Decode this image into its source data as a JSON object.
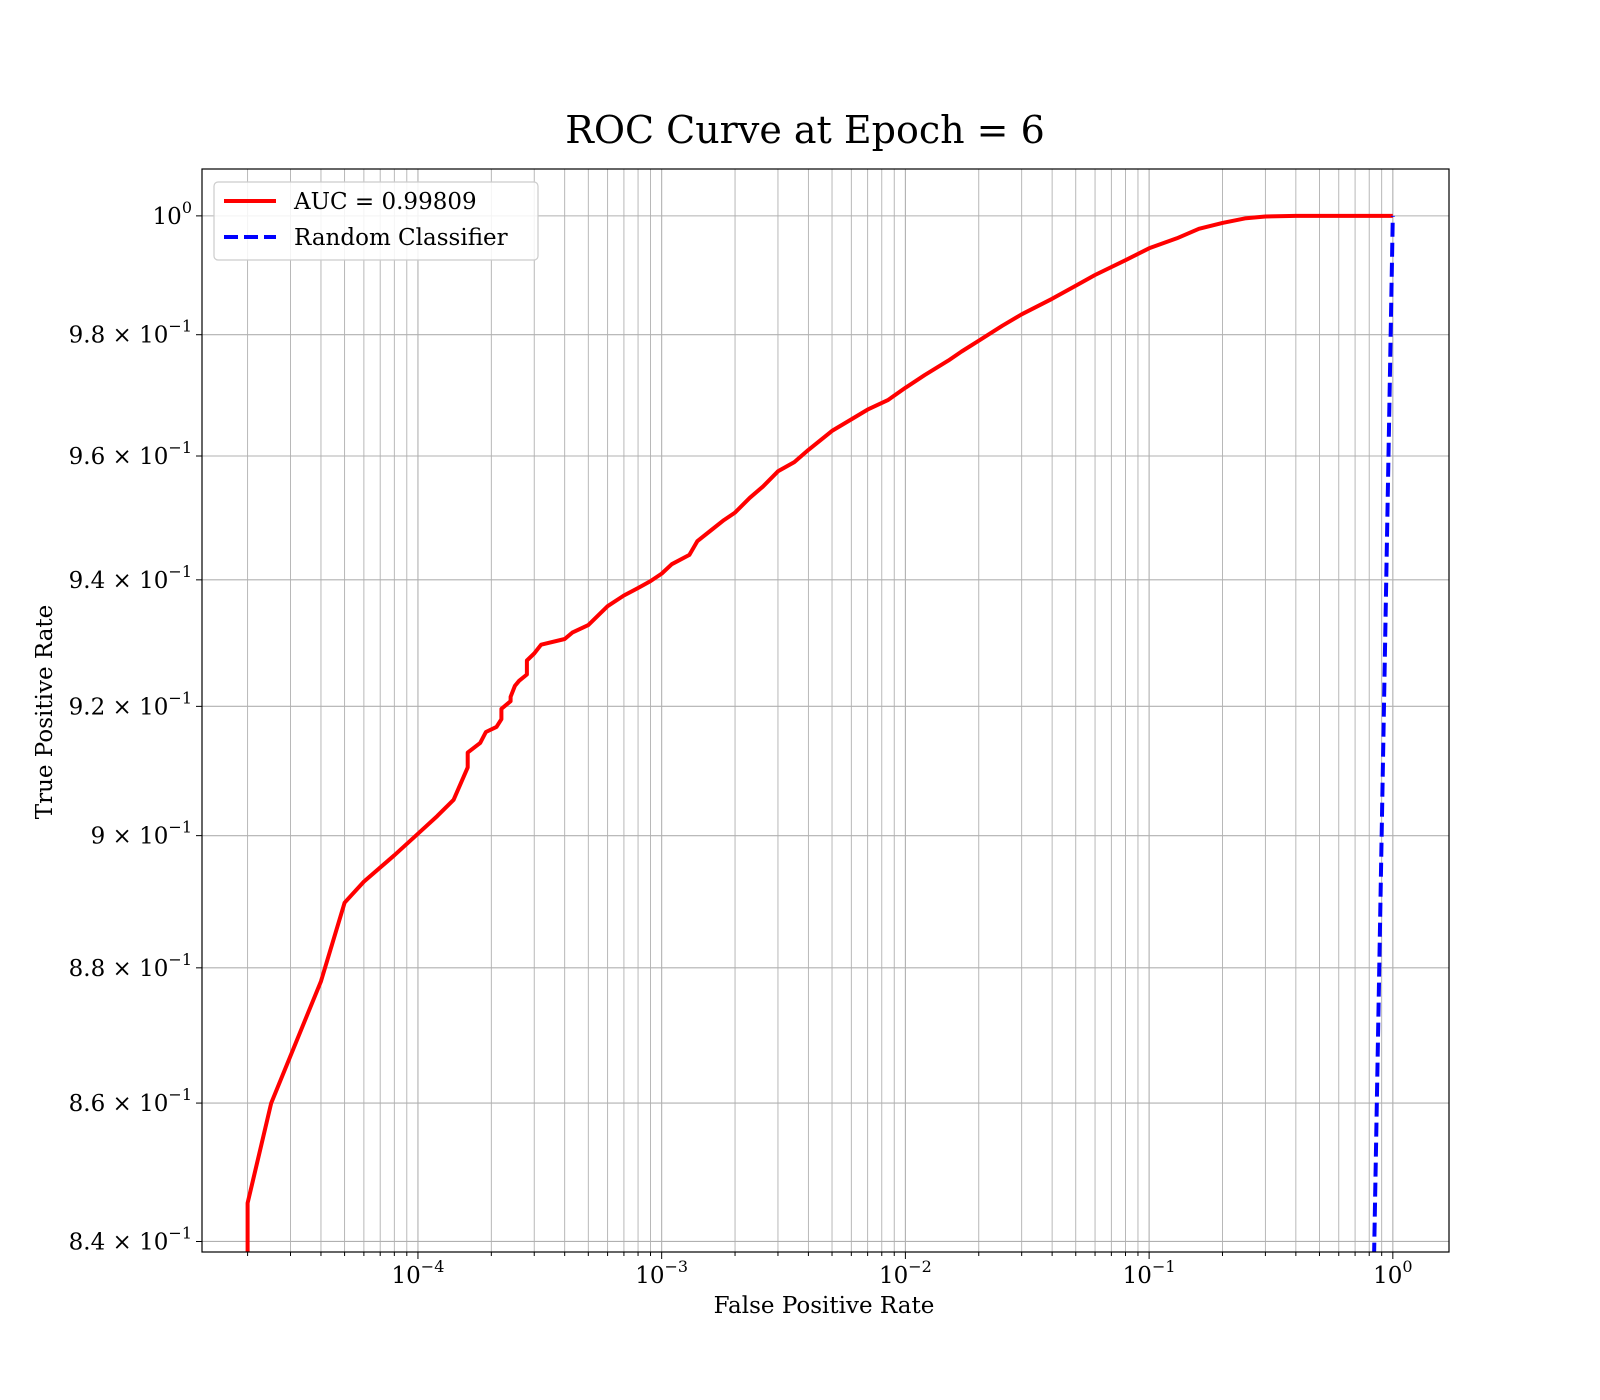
{
  "chart_data": {
    "type": "line",
    "title": "ROC Curve at Epoch = 6",
    "xlabel": "False Positive Rate",
    "ylabel": "True Positive Rate",
    "xscale": "log",
    "yscale": "log",
    "xlim": [
      1.3e-05,
      1.7
    ],
    "ylim": [
      0.8385,
      1.008
    ],
    "grid": "both",
    "legend_position": "top-left",
    "x_ticks": [
      {
        "base": "10",
        "exp": "−4",
        "value": 0.0001
      },
      {
        "base": "10",
        "exp": "−3",
        "value": 0.001
      },
      {
        "base": "10",
        "exp": "−2",
        "value": 0.01
      },
      {
        "base": "10",
        "exp": "−1",
        "value": 0.1
      },
      {
        "base": "10",
        "exp": "0",
        "value": 1
      }
    ],
    "y_ticks": [
      {
        "mant": "",
        "base": "10",
        "exp": "0",
        "value": 1.0
      },
      {
        "mant": "9.8 × ",
        "base": "10",
        "exp": "−1",
        "value": 0.98
      },
      {
        "mant": "9.6 × ",
        "base": "10",
        "exp": "−1",
        "value": 0.96
      },
      {
        "mant": "9.4 × ",
        "base": "10",
        "exp": "−1",
        "value": 0.94
      },
      {
        "mant": "9.2 × ",
        "base": "10",
        "exp": "−1",
        "value": 0.92
      },
      {
        "mant": "9 × ",
        "base": "10",
        "exp": "−1",
        "value": 0.9
      },
      {
        "mant": "8.8 × ",
        "base": "10",
        "exp": "−1",
        "value": 0.88
      },
      {
        "mant": "8.6 × ",
        "base": "10",
        "exp": "−1",
        "value": 0.86
      },
      {
        "mant": "8.4 × ",
        "base": "10",
        "exp": "−1",
        "value": 0.84
      }
    ],
    "series": [
      {
        "name": "AUC = 0.99809",
        "color": "#ff0000",
        "style": "solid",
        "x": [
          2e-05,
          2e-05,
          2.5e-05,
          4e-05,
          5e-05,
          6e-05,
          8e-05,
          0.0001,
          0.00012,
          0.00014,
          0.00016,
          0.00016,
          0.00018,
          0.00019,
          0.00021,
          0.00022,
          0.00022,
          0.00024,
          0.00024,
          0.00025,
          0.00026,
          0.00028,
          0.00028,
          0.0003,
          0.00032,
          0.0004,
          0.00043,
          0.0005,
          0.0006,
          0.0007,
          0.0008,
          0.0009,
          0.001,
          0.0011,
          0.0013,
          0.0014,
          0.0016,
          0.0018,
          0.002,
          0.0023,
          0.0026,
          0.003,
          0.0035,
          0.004,
          0.005,
          0.006,
          0.007,
          0.0085,
          0.01,
          0.012,
          0.015,
          0.017,
          0.02,
          0.025,
          0.03,
          0.04,
          0.05,
          0.06,
          0.08,
          0.1,
          0.13,
          0.16,
          0.2,
          0.25,
          0.3,
          0.4,
          0.5,
          0.6,
          0.8,
          1.0
        ],
        "y": [
          0.8385,
          0.8455,
          0.86,
          0.878,
          0.8898,
          0.893,
          0.897,
          0.9003,
          0.903,
          0.9055,
          0.9105,
          0.9128,
          0.9143,
          0.916,
          0.9168,
          0.918,
          0.9196,
          0.9208,
          0.9215,
          0.9232,
          0.924,
          0.925,
          0.9272,
          0.9283,
          0.9297,
          0.9306,
          0.9316,
          0.9328,
          0.9358,
          0.9375,
          0.9387,
          0.9398,
          0.941,
          0.9425,
          0.944,
          0.9462,
          0.948,
          0.9496,
          0.9508,
          0.9532,
          0.955,
          0.9575,
          0.959,
          0.961,
          0.9641,
          0.966,
          0.9676,
          0.9692,
          0.9712,
          0.9733,
          0.9757,
          0.9772,
          0.979,
          0.9815,
          0.9834,
          0.986,
          0.9882,
          0.99,
          0.9925,
          0.9945,
          0.9962,
          0.9978,
          0.9988,
          0.9996,
          0.9999,
          1.0,
          1.0,
          1.0,
          1.0,
          1.0
        ]
      },
      {
        "name": "Random Classifier",
        "color": "#0000ff",
        "style": "dashed",
        "x": [
          0.835,
          1.0
        ],
        "y": [
          0.835,
          1.0
        ]
      }
    ]
  }
}
